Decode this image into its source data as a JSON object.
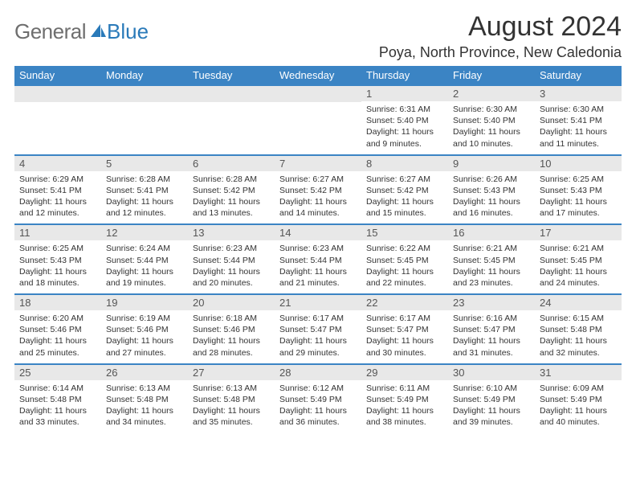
{
  "logo": {
    "gray_text": "General",
    "blue_text": "Blue"
  },
  "title": "August 2024",
  "subtitle": "Poya, North Province, New Caledonia",
  "colors": {
    "header_bg": "#3b84c4",
    "header_text": "#ffffff",
    "daynum_bg": "#e8e8e8",
    "border": "#3b84c4",
    "logo_gray": "#6e6e6e",
    "logo_blue": "#2a7ab9"
  },
  "day_headers": [
    "Sunday",
    "Monday",
    "Tuesday",
    "Wednesday",
    "Thursday",
    "Friday",
    "Saturday"
  ],
  "weeks": [
    [
      {
        "num": "",
        "lines": []
      },
      {
        "num": "",
        "lines": []
      },
      {
        "num": "",
        "lines": []
      },
      {
        "num": "",
        "lines": []
      },
      {
        "num": "1",
        "lines": [
          "Sunrise: 6:31 AM",
          "Sunset: 5:40 PM",
          "Daylight: 11 hours",
          "and 9 minutes."
        ]
      },
      {
        "num": "2",
        "lines": [
          "Sunrise: 6:30 AM",
          "Sunset: 5:40 PM",
          "Daylight: 11 hours",
          "and 10 minutes."
        ]
      },
      {
        "num": "3",
        "lines": [
          "Sunrise: 6:30 AM",
          "Sunset: 5:41 PM",
          "Daylight: 11 hours",
          "and 11 minutes."
        ]
      }
    ],
    [
      {
        "num": "4",
        "lines": [
          "Sunrise: 6:29 AM",
          "Sunset: 5:41 PM",
          "Daylight: 11 hours",
          "and 12 minutes."
        ]
      },
      {
        "num": "5",
        "lines": [
          "Sunrise: 6:28 AM",
          "Sunset: 5:41 PM",
          "Daylight: 11 hours",
          "and 12 minutes."
        ]
      },
      {
        "num": "6",
        "lines": [
          "Sunrise: 6:28 AM",
          "Sunset: 5:42 PM",
          "Daylight: 11 hours",
          "and 13 minutes."
        ]
      },
      {
        "num": "7",
        "lines": [
          "Sunrise: 6:27 AM",
          "Sunset: 5:42 PM",
          "Daylight: 11 hours",
          "and 14 minutes."
        ]
      },
      {
        "num": "8",
        "lines": [
          "Sunrise: 6:27 AM",
          "Sunset: 5:42 PM",
          "Daylight: 11 hours",
          "and 15 minutes."
        ]
      },
      {
        "num": "9",
        "lines": [
          "Sunrise: 6:26 AM",
          "Sunset: 5:43 PM",
          "Daylight: 11 hours",
          "and 16 minutes."
        ]
      },
      {
        "num": "10",
        "lines": [
          "Sunrise: 6:25 AM",
          "Sunset: 5:43 PM",
          "Daylight: 11 hours",
          "and 17 minutes."
        ]
      }
    ],
    [
      {
        "num": "11",
        "lines": [
          "Sunrise: 6:25 AM",
          "Sunset: 5:43 PM",
          "Daylight: 11 hours",
          "and 18 minutes."
        ]
      },
      {
        "num": "12",
        "lines": [
          "Sunrise: 6:24 AM",
          "Sunset: 5:44 PM",
          "Daylight: 11 hours",
          "and 19 minutes."
        ]
      },
      {
        "num": "13",
        "lines": [
          "Sunrise: 6:23 AM",
          "Sunset: 5:44 PM",
          "Daylight: 11 hours",
          "and 20 minutes."
        ]
      },
      {
        "num": "14",
        "lines": [
          "Sunrise: 6:23 AM",
          "Sunset: 5:44 PM",
          "Daylight: 11 hours",
          "and 21 minutes."
        ]
      },
      {
        "num": "15",
        "lines": [
          "Sunrise: 6:22 AM",
          "Sunset: 5:45 PM",
          "Daylight: 11 hours",
          "and 22 minutes."
        ]
      },
      {
        "num": "16",
        "lines": [
          "Sunrise: 6:21 AM",
          "Sunset: 5:45 PM",
          "Daylight: 11 hours",
          "and 23 minutes."
        ]
      },
      {
        "num": "17",
        "lines": [
          "Sunrise: 6:21 AM",
          "Sunset: 5:45 PM",
          "Daylight: 11 hours",
          "and 24 minutes."
        ]
      }
    ],
    [
      {
        "num": "18",
        "lines": [
          "Sunrise: 6:20 AM",
          "Sunset: 5:46 PM",
          "Daylight: 11 hours",
          "and 25 minutes."
        ]
      },
      {
        "num": "19",
        "lines": [
          "Sunrise: 6:19 AM",
          "Sunset: 5:46 PM",
          "Daylight: 11 hours",
          "and 27 minutes."
        ]
      },
      {
        "num": "20",
        "lines": [
          "Sunrise: 6:18 AM",
          "Sunset: 5:46 PM",
          "Daylight: 11 hours",
          "and 28 minutes."
        ]
      },
      {
        "num": "21",
        "lines": [
          "Sunrise: 6:17 AM",
          "Sunset: 5:47 PM",
          "Daylight: 11 hours",
          "and 29 minutes."
        ]
      },
      {
        "num": "22",
        "lines": [
          "Sunrise: 6:17 AM",
          "Sunset: 5:47 PM",
          "Daylight: 11 hours",
          "and 30 minutes."
        ]
      },
      {
        "num": "23",
        "lines": [
          "Sunrise: 6:16 AM",
          "Sunset: 5:47 PM",
          "Daylight: 11 hours",
          "and 31 minutes."
        ]
      },
      {
        "num": "24",
        "lines": [
          "Sunrise: 6:15 AM",
          "Sunset: 5:48 PM",
          "Daylight: 11 hours",
          "and 32 minutes."
        ]
      }
    ],
    [
      {
        "num": "25",
        "lines": [
          "Sunrise: 6:14 AM",
          "Sunset: 5:48 PM",
          "Daylight: 11 hours",
          "and 33 minutes."
        ]
      },
      {
        "num": "26",
        "lines": [
          "Sunrise: 6:13 AM",
          "Sunset: 5:48 PM",
          "Daylight: 11 hours",
          "and 34 minutes."
        ]
      },
      {
        "num": "27",
        "lines": [
          "Sunrise: 6:13 AM",
          "Sunset: 5:48 PM",
          "Daylight: 11 hours",
          "and 35 minutes."
        ]
      },
      {
        "num": "28",
        "lines": [
          "Sunrise: 6:12 AM",
          "Sunset: 5:49 PM",
          "Daylight: 11 hours",
          "and 36 minutes."
        ]
      },
      {
        "num": "29",
        "lines": [
          "Sunrise: 6:11 AM",
          "Sunset: 5:49 PM",
          "Daylight: 11 hours",
          "and 38 minutes."
        ]
      },
      {
        "num": "30",
        "lines": [
          "Sunrise: 6:10 AM",
          "Sunset: 5:49 PM",
          "Daylight: 11 hours",
          "and 39 minutes."
        ]
      },
      {
        "num": "31",
        "lines": [
          "Sunrise: 6:09 AM",
          "Sunset: 5:49 PM",
          "Daylight: 11 hours",
          "and 40 minutes."
        ]
      }
    ]
  ]
}
